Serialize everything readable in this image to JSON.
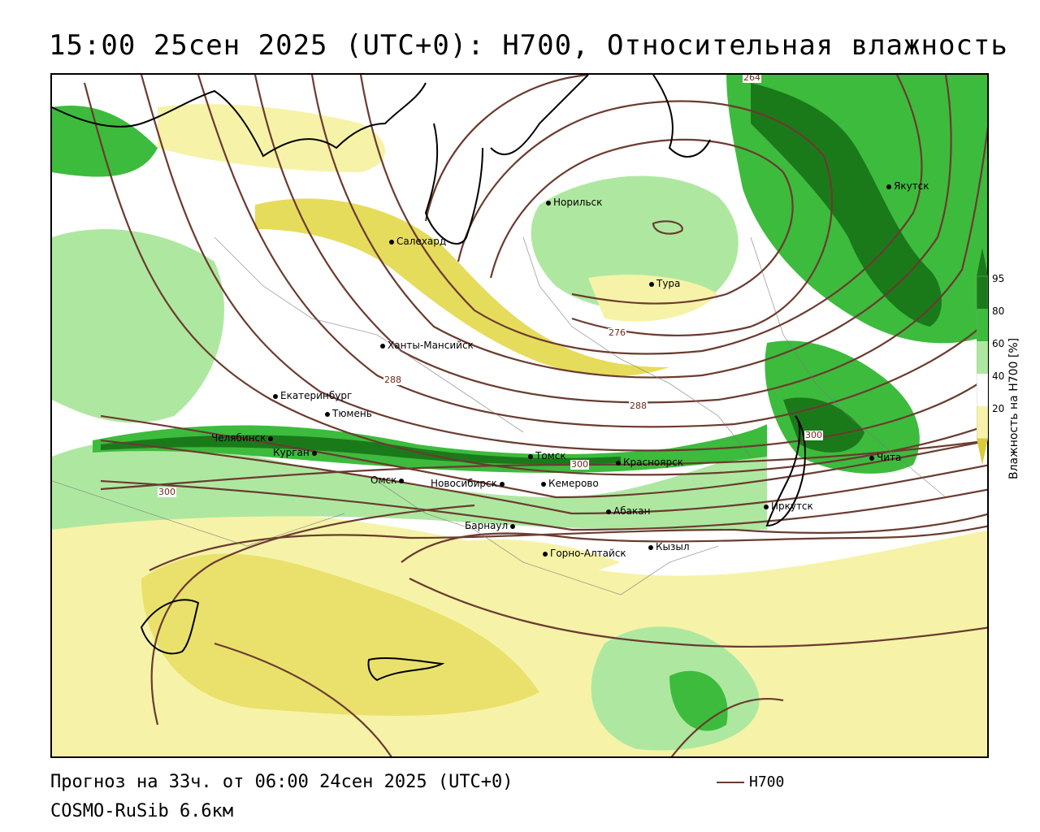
{
  "title": "15:00 25сен 2025 (UTC+0): H700, Относительная влажность",
  "footer": {
    "forecast": "Прогноз на 33ч. от 06:00 24сен 2025 (UTC+0)",
    "model": "COSMO-RuSib 6.6км"
  },
  "legend": {
    "line_label": "H700",
    "line_color": "#6b3b30"
  },
  "colorbar": {
    "title": "Влажность на H700 [%]",
    "ticks": [
      "95",
      "80",
      "60",
      "40",
      "20"
    ],
    "colors": {
      "c95": "#1a7a1a",
      "c80": "#3dbb3d",
      "c60": "#aee8a0",
      "c40": "#ffffff",
      "c20": "#f6f3a8",
      "c_low": "#d8cc3a"
    }
  },
  "contour_labels": [
    "264",
    "276",
    "288",
    "288",
    "300",
    "300",
    "300"
  ],
  "cities": [
    {
      "name": "Норильск"
    },
    {
      "name": "Якутск"
    },
    {
      "name": "Салехард"
    },
    {
      "name": "Тура"
    },
    {
      "name": "Ханты-Мансийск"
    },
    {
      "name": "Екатеринбург"
    },
    {
      "name": "Тюмень"
    },
    {
      "name": "Челябинск"
    },
    {
      "name": "Курган"
    },
    {
      "name": "Томск"
    },
    {
      "name": "Красноярск"
    },
    {
      "name": "Чита"
    },
    {
      "name": "Омск"
    },
    {
      "name": "Новосибирск"
    },
    {
      "name": "Кемерово"
    },
    {
      "name": "Абакан"
    },
    {
      "name": "Иркутск"
    },
    {
      "name": "Барнаул"
    },
    {
      "name": "Горно-Алтайск"
    },
    {
      "name": "Кызыл"
    }
  ]
}
